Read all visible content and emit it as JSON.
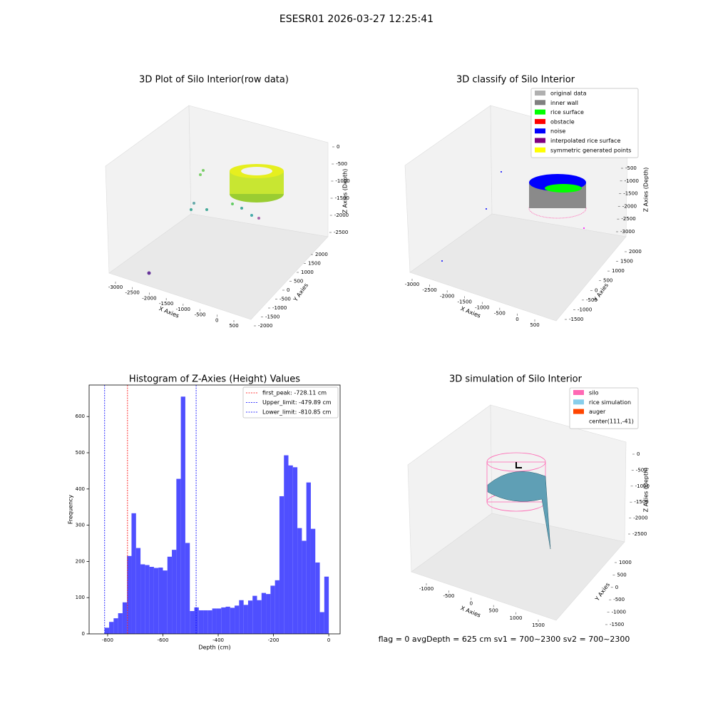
{
  "title": "ESESR01 2026-03-27 12:25:41",
  "footer": "flag = 0     avgDepth = 625 cm  sv1 = 700~2300  sv2 = 700~2300",
  "chart_data": [
    {
      "type": "scatter3d",
      "title": "3D Plot of Silo Interior(row data)",
      "xlabel": "X Axies",
      "ylabel": "Y Axies",
      "zlabel": "Z Axies (Depth)",
      "xticks": [
        -3000,
        -2500,
        -2000,
        -1500,
        -1000,
        -500,
        0,
        500
      ],
      "yticks": [
        -2000,
        -1500,
        -1000,
        -500,
        0,
        500,
        1000,
        1500,
        2000
      ],
      "zticks": [
        0,
        -500,
        -1000,
        -1500,
        -2000,
        -2500
      ]
    },
    {
      "type": "scatter3d",
      "title": "3D classify of Silo Interior",
      "xlabel": "X Axies",
      "ylabel": "Y Axies",
      "zlabel": "Z Axies (Depth)",
      "xticks": [
        -3000,
        -2500,
        -2000,
        -1500,
        -1000,
        -500,
        0,
        500
      ],
      "yticks": [
        -1500,
        -1000,
        -500,
        0,
        500,
        1000,
        1500,
        2000
      ],
      "zticks": [
        -500,
        -1000,
        -1500,
        -2000,
        -2500,
        -3000
      ],
      "legend": [
        {
          "name": "original data",
          "color": "#b0b0b0"
        },
        {
          "name": "inner wall",
          "color": "#808080"
        },
        {
          "name": "rice surface",
          "color": "#00ff00"
        },
        {
          "name": "obstacle",
          "color": "#ff0000"
        },
        {
          "name": "noise",
          "color": "#0000ff"
        },
        {
          "name": "interpolated rice surface",
          "color": "#800080"
        },
        {
          "name": "symmetric generated points",
          "color": "#ffff00"
        }
      ]
    },
    {
      "type": "histogram",
      "title": "Histogram of Z-Axies (Height) Values",
      "xlabel": "Depth (cm)",
      "ylabel": "Frequency",
      "color": "#4f4fff",
      "bins": [
        -810.9,
        -794.6,
        -778.4,
        -762.2,
        -746.0,
        -729.8,
        -713.6,
        -697.3,
        -681.1,
        -664.9,
        -648.7,
        -632.5,
        -616.3,
        -600.0,
        -583.8,
        -567.6,
        -551.4,
        -535.2,
        -519.0,
        -502.7,
        -486.5,
        -470.3,
        -454.1,
        -437.9,
        -421.7,
        -405.4,
        -389.2,
        -373.0,
        -356.8,
        -340.6,
        -324.4,
        -308.1,
        -291.9,
        -275.7,
        -259.5,
        -243.3,
        -227.1,
        -210.8,
        -194.6,
        -178.4,
        -162.2,
        -146.0,
        -129.8,
        -113.5,
        -97.3,
        -81.1,
        -64.9,
        -48.7,
        -32.4,
        -16.2,
        0
      ],
      "values": [
        17,
        33,
        43,
        57,
        87,
        215,
        333,
        237,
        192,
        190,
        185,
        182,
        183,
        175,
        213,
        232,
        428,
        655,
        251,
        63,
        73,
        65,
        65,
        65,
        70,
        70,
        73,
        75,
        72,
        78,
        93,
        80,
        92,
        105,
        93,
        113,
        110,
        133,
        148,
        380,
        493,
        465,
        460,
        292,
        257,
        418,
        290,
        197,
        60,
        158
      ],
      "xlim": [
        -867,
        41
      ],
      "ylim": [
        0,
        687
      ],
      "xticks": [
        -800,
        -600,
        -400,
        -200,
        0
      ],
      "yticks": [
        0,
        100,
        200,
        300,
        400,
        500,
        600
      ],
      "vlines": [
        {
          "label": "first_peak: -728.11 cm",
          "value": -728.11,
          "color": "#ff0000"
        },
        {
          "label": "Upper_limit: -479.89 cm",
          "value": -479.89,
          "color": "#0000ff"
        },
        {
          "label": "Lower_limit: -810.85 cm",
          "value": -810.85,
          "color": "#0000ff"
        }
      ]
    },
    {
      "type": "surface3d",
      "title": "3D simulation of Silo Interior",
      "xlabel": "X Axies",
      "ylabel": "Y Axies",
      "zlabel": "Z Axies (Depth)",
      "xticks": [
        -1000,
        -500,
        0,
        500,
        1000,
        1500
      ],
      "yticks": [
        -1500,
        -1000,
        -500,
        0,
        500,
        1000
      ],
      "zticks": [
        0,
        -500,
        -1000,
        -1500,
        -2000,
        -2500
      ],
      "legend": [
        {
          "name": "silo",
          "color": "#ff69b4"
        },
        {
          "name": "rice simulation",
          "color": "#87ceeb"
        },
        {
          "name": "auger",
          "color": "#ff4500"
        },
        {
          "name": "center(111,-41)"
        }
      ]
    }
  ]
}
